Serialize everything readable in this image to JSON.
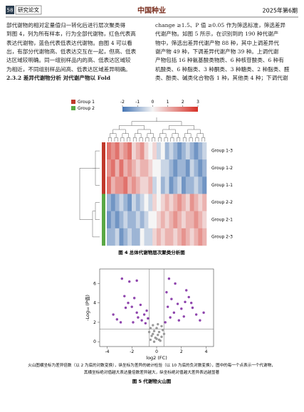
{
  "header": {
    "page_number": "58",
    "section": "研究论文",
    "journal": "中国种业",
    "issue": "2025年第6期"
  },
  "body": {
    "left": [
      "部代谢物的相对定量值归一转化后进行层次聚类得",
      "到图 4，列为所有样本，行为全部代谢物，红色代表高",
      "表达代谢物，蓝色代表低表达代谢物。由图 4 可以看",
      "出，有部分代谢物高、低表达交互在一起，但高、低表",
      "达区域较明确。同一组别样品内的高、低表达区域较",
      "为相近，不同组别样品间高、低表达区域差异明确。",
      "2.3.2  差异代谢物分析   对代谢产物以 Fold"
    ],
    "right": [
      "change ≥1.5、P 值 ≥0.05 作为筛选标准，筛选差异",
      "代谢产物。如图 5 所示，在识别到的 190 种代谢产",
      "物中，筛选出差异代谢产物 88 种，其中上调差异代",
      "谢产物 49 种，下调差异代谢产物 39 种。上调代谢",
      "产物包括 16 种氨基酸类物质、6 种核苷酸类、6 种有",
      "机酸类、6 种脂类、3 种酮类、3 种糖类、2 种脂类、醛",
      "类、酚类、碱类化合物各 1 种，其他类 4 种；下调代谢"
    ]
  },
  "figure4": {
    "legend": [
      {
        "name": "Group 1",
        "color": "#c0392b"
      },
      {
        "name": "Group 2",
        "color": "#5aa845"
      }
    ],
    "colorbar": {
      "range": [
        -2,
        3
      ],
      "ticks": [
        -2,
        -1,
        0,
        1,
        2,
        3
      ]
    },
    "rows": [
      {
        "label": "Group 1-3",
        "group": 0,
        "values": [
          2,
          1.5,
          2,
          1,
          1.5,
          2,
          0.5,
          1,
          1.5,
          0.5,
          0,
          0.5,
          -0.5,
          0,
          -1,
          -0.5,
          -1,
          -1.5,
          -1,
          -0.5,
          -1,
          -1.5,
          -1,
          -0.5
        ]
      },
      {
        "label": "Group 1-2",
        "group": 0,
        "values": [
          1.5,
          2,
          1,
          2,
          1,
          1.5,
          1,
          0.5,
          1,
          1,
          0.5,
          0,
          0,
          -0.5,
          -0.5,
          -1,
          -1.5,
          -1,
          -1,
          -1.5,
          -0.5,
          -1,
          -1.5,
          -1
        ]
      },
      {
        "label": "Group 1-1",
        "group": 0,
        "values": [
          2,
          1,
          1.5,
          1.5,
          2,
          1,
          1.5,
          1,
          0.5,
          0.5,
          1,
          -0.5,
          0,
          -1,
          -0.5,
          -1.5,
          -1,
          -0.5,
          -1.5,
          -1,
          -1,
          -0.5,
          -1,
          -1.5
        ]
      },
      {
        "label": "Group 2-2",
        "group": 1,
        "values": [
          -1,
          -1.5,
          -1,
          -0.5,
          -1,
          -1.5,
          -0.5,
          -1,
          -0.5,
          0,
          -0.5,
          0.5,
          0,
          0.5,
          1,
          0.5,
          1,
          1.5,
          1,
          0.5,
          1.5,
          1,
          0.5,
          1
        ]
      },
      {
        "label": "Group 2-1",
        "group": 1,
        "values": [
          -1.5,
          -1,
          -1.5,
          -1,
          -0.5,
          -1,
          -1,
          -0.5,
          -1,
          -0.5,
          0,
          0,
          0.5,
          1,
          0.5,
          1,
          1.5,
          1,
          0.5,
          1,
          1,
          1.5,
          1,
          0.5
        ]
      },
      {
        "label": "Group 2-3",
        "group": 1,
        "values": [
          -1,
          -1,
          -0.5,
          -1.5,
          -1,
          -0.5,
          -1,
          -1,
          0,
          -0.5,
          -0.5,
          0.5,
          1,
          0.5,
          1,
          1,
          0.5,
          1,
          1.5,
          1,
          0.5,
          1,
          1.5,
          1
        ]
      }
    ],
    "caption": "图 4   总体代谢物层次聚类分析图"
  },
  "figure5": {
    "chart_data": {
      "type": "scatter",
      "xlabel": "log2 (FC)",
      "ylabel": "-Log₁₀ (P值)",
      "xlim": [
        -4.6,
        4.6
      ],
      "ylim": [
        -0.5,
        7.5
      ],
      "xticks": [
        -4,
        -2,
        0,
        2,
        4
      ],
      "yticks": [
        0,
        2,
        4,
        6
      ],
      "thresholds": {
        "x": [
          -0.585,
          0.585
        ],
        "y": 1.3
      },
      "series": [
        {
          "color": "#8e44ad",
          "x": [
            -2.8,
            -2.2,
            -1.6,
            -3.5,
            -3.2,
            -2.9,
            -2.5,
            -2.3,
            -2.0,
            -1.8,
            -1.6,
            -1.5,
            -1.3,
            -1.2,
            -1.0,
            -0.9,
            -0.8,
            -0.7,
            -2.6,
            -1.9,
            1.0,
            1.5,
            0.8,
            1.2,
            0.9,
            1.4,
            1.7,
            2.0,
            2.3,
            2.6,
            2.2,
            1.8,
            2.9,
            3.2,
            3.5,
            0.7,
            1.1,
            2.4,
            2.8,
            3.8
          ],
          "values": [
            6.5,
            6.2,
            6.3,
            2.8,
            2.3,
            2.0,
            3.5,
            4.0,
            3.6,
            4.5,
            3.0,
            2.5,
            3.8,
            2.2,
            2.8,
            1.9,
            3.2,
            2.4,
            4.7,
            2.0,
            6.5,
            6.0,
            5.1,
            4.4,
            3.6,
            3.0,
            3.9,
            3.4,
            4.1,
            4.6,
            2.6,
            2.2,
            3.5,
            2.8,
            2.2,
            2.0,
            2.5,
            5.3,
            4.0,
            3.0
          ]
        },
        {
          "color": "#9a9a9a",
          "x": [
            -0.5,
            -0.3,
            -0.2,
            0,
            0.1,
            0.2,
            0.4,
            0.3,
            -0.4,
            -0.1,
            0.5,
            -0.6,
            0.0,
            0.2,
            -0.2,
            0.6,
            -0.5,
            0.4,
            0.1,
            -0.3
          ],
          "values": [
            0.2,
            0.8,
            1.1,
            0.3,
            0.7,
            1.0,
            0.5,
            0.1,
            0.6,
            0.4,
            1.2,
            1.0,
            1.4,
            0.2,
            0.0,
            0.8,
            1.4,
            1.6,
            1.8,
            1.7
          ]
        }
      ]
    },
    "caption": [
      "火山图横坐标为差异倍数（以 2 为底的对数变换），纵坐标为差异的统计检验（以 10 为底的负对数变换），图中的每一个点表示一个代谢物，",
      "其横坐标绝对值越大表达量倍数差异越大，纵坐标绝对值越大差异表达越显著"
    ],
    "title": "图 5   代谢物火山图"
  }
}
